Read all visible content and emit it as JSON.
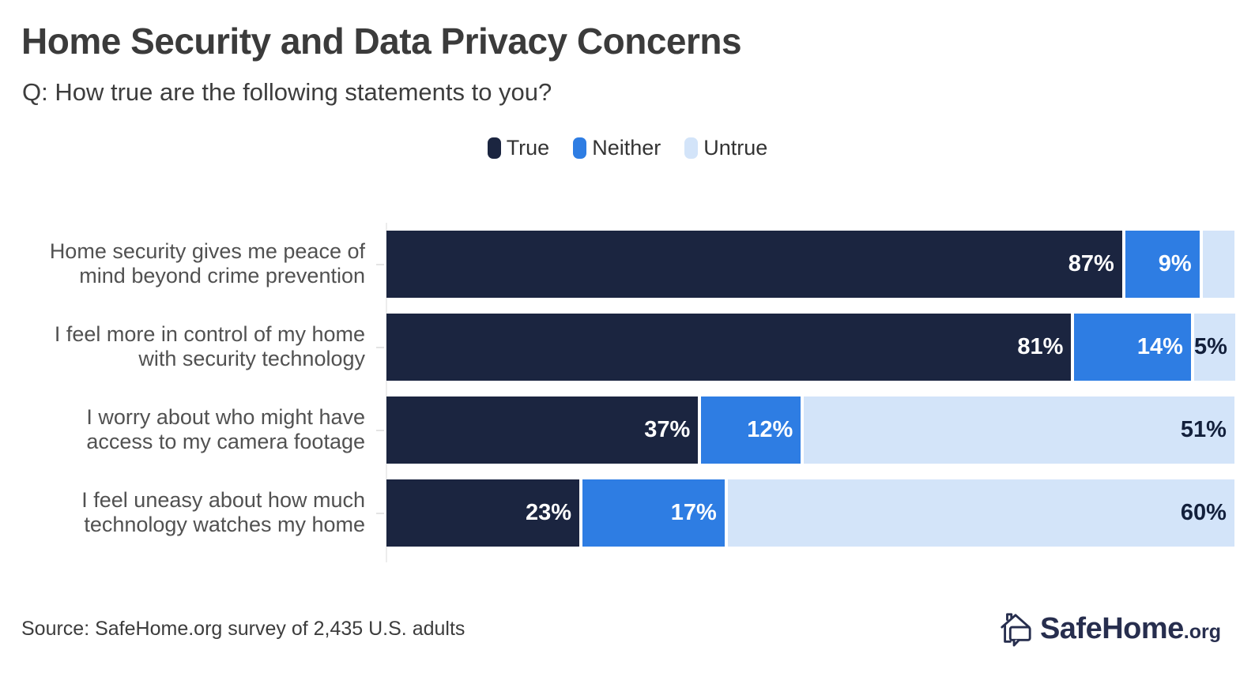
{
  "header": {
    "title": "Home Security and Data Privacy Concerns",
    "subtitle": "Q: How true are the following statements to you?"
  },
  "legend": {
    "position": "top-center",
    "items": [
      {
        "label": "True",
        "color": "#1b2540"
      },
      {
        "label": "Neither",
        "color": "#2e7de3"
      },
      {
        "label": "Untrue",
        "color": "#d3e4f9"
      }
    ]
  },
  "chart_data": {
    "type": "bar",
    "orientation": "horizontal",
    "stacked": true,
    "value_unit": "%",
    "xlim": [
      0,
      100
    ],
    "grid": false,
    "legend_position": "top-center",
    "categories": [
      "Home security gives me peace of mind beyond crime prevention",
      "I feel more in control of my home with security technology",
      "I worry about who might have access to my camera footage",
      "I feel uneasy about how much technology watches my home"
    ],
    "category_lines": [
      [
        "Home security gives me peace of",
        "mind beyond crime prevention"
      ],
      [
        "I feel more in control of my home",
        "with security technology"
      ],
      [
        "I worry about who might have",
        "access to my camera footage"
      ],
      [
        "I feel uneasy about how much",
        "technology watches my home"
      ]
    ],
    "series": [
      {
        "name": "True",
        "color": "#1b2540",
        "label_color": "#ffffff",
        "values": [
          87,
          81,
          37,
          23
        ],
        "labels": [
          "87%",
          "81%",
          "37%",
          "23%"
        ]
      },
      {
        "name": "Neither",
        "color": "#2e7de3",
        "label_color": "#ffffff",
        "values": [
          9,
          14,
          12,
          17
        ],
        "labels": [
          "9%",
          "14%",
          "12%",
          "17%"
        ]
      },
      {
        "name": "Untrue",
        "color": "#d3e4f9",
        "label_color": "#13203c",
        "values": [
          4,
          5,
          51,
          60
        ],
        "labels": [
          "",
          "5%",
          "51%",
          "60%"
        ]
      }
    ]
  },
  "footer": {
    "source": "Source: SafeHome.org survey of 2,435 U.S. adults",
    "logo": {
      "text": "SafeHome",
      "suffix": ".org"
    }
  }
}
